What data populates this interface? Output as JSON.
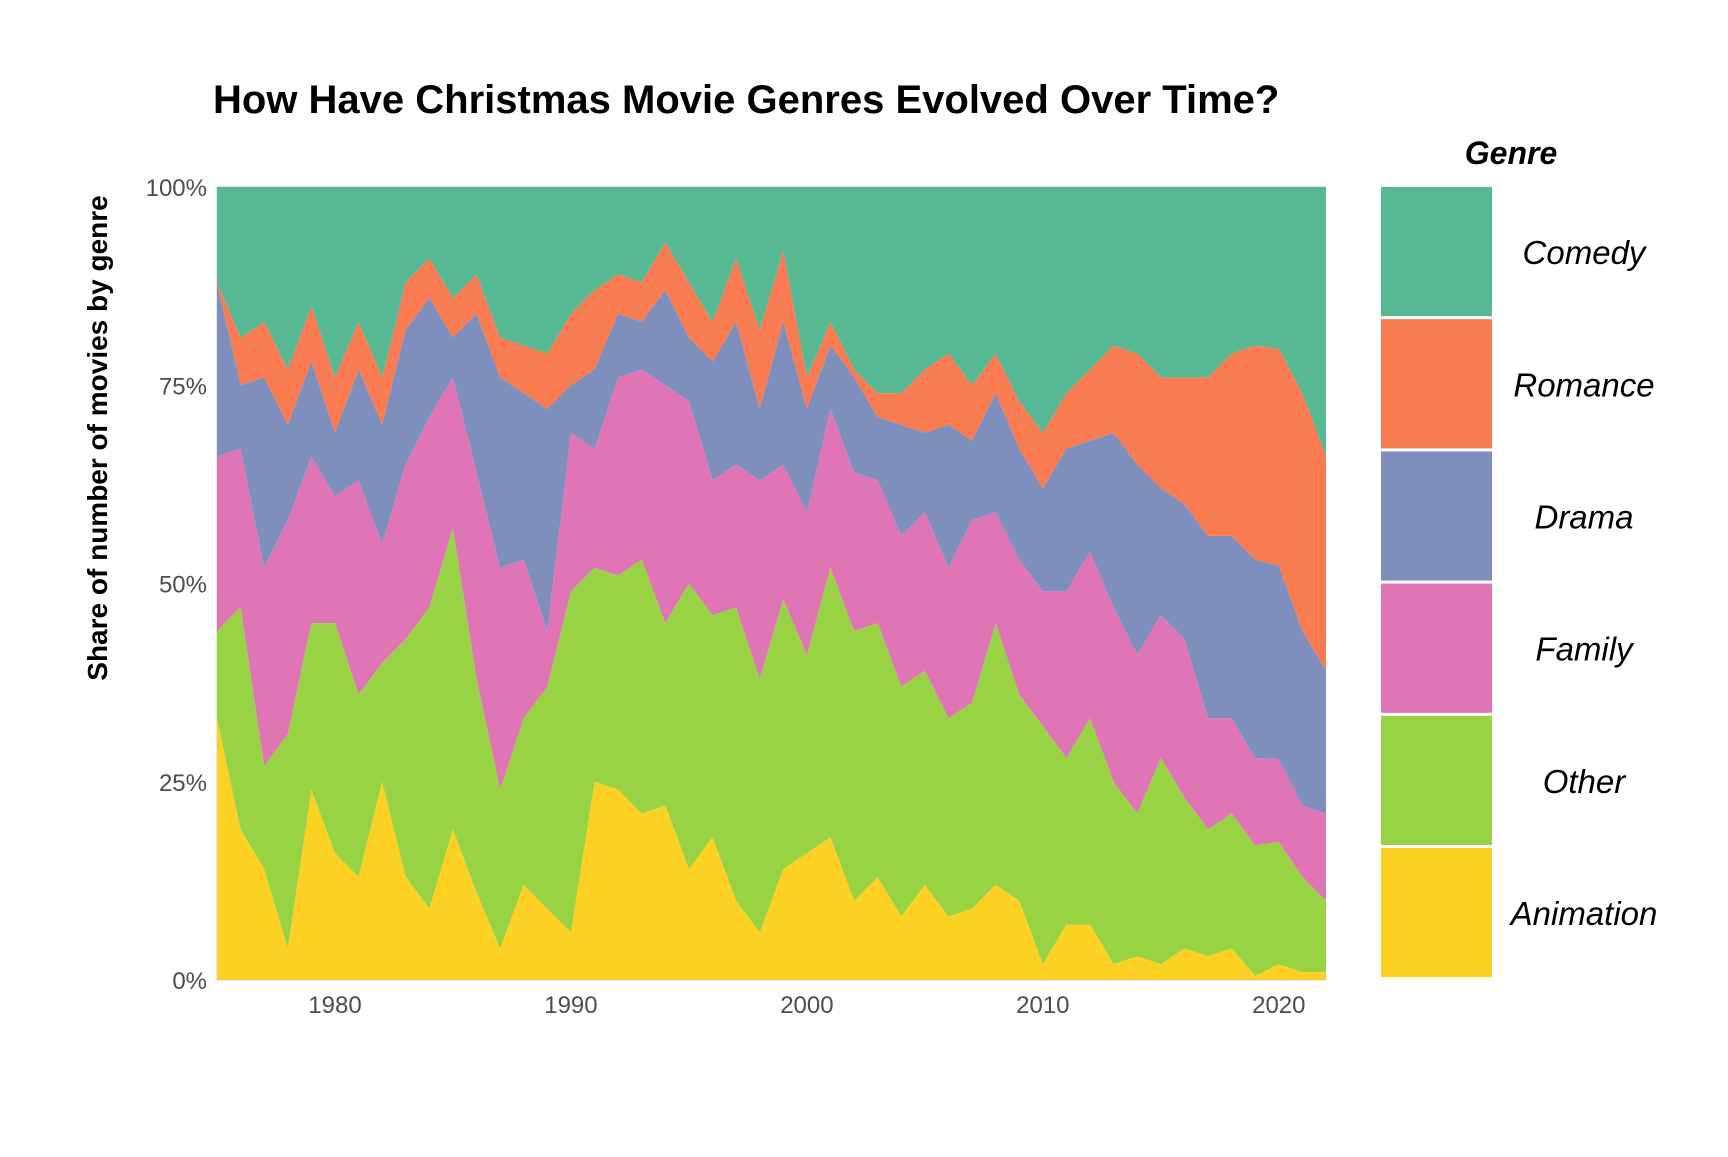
{
  "chart_data": {
    "type": "area",
    "stacked": true,
    "normalized": true,
    "title": "How Have Christmas Movie Genres Evolved Over Time?",
    "xlabel": "",
    "ylabel": "Share of number of movies by genre",
    "xlim": [
      1975,
      2022
    ],
    "ylim": [
      0,
      1
    ],
    "x_ticks": [
      1980,
      1990,
      2000,
      2010,
      2020
    ],
    "y_ticks": [
      "0%",
      "25%",
      "50%",
      "75%",
      "100%"
    ],
    "grid": true,
    "legend": {
      "title": "Genre",
      "position": "right"
    },
    "x": [
      1975,
      1976,
      1977,
      1978,
      1979,
      1980,
      1981,
      1982,
      1983,
      1984,
      1985,
      1986,
      1987,
      1988,
      1989,
      1990,
      1991,
      1992,
      1993,
      1994,
      1995,
      1996,
      1997,
      1998,
      1999,
      2000,
      2001,
      2002,
      2003,
      2004,
      2005,
      2006,
      2007,
      2008,
      2009,
      2010,
      2011,
      2012,
      2013,
      2014,
      2015,
      2016,
      2017,
      2018,
      2019,
      2020,
      2021,
      2022
    ],
    "series": [
      {
        "name": "Animation",
        "color": "#fcd124",
        "values": [
          0.33,
          0.19,
          0.14,
          0.04,
          0.24,
          0.16,
          0.13,
          0.25,
          0.13,
          0.09,
          0.19,
          0.11,
          0.04,
          0.12,
          0.09,
          0.06,
          0.25,
          0.24,
          0.21,
          0.22,
          0.14,
          0.18,
          0.1,
          0.06,
          0.14,
          0.16,
          0.18,
          0.1,
          0.13,
          0.08,
          0.12,
          0.08,
          0.09,
          0.12,
          0.1,
          0.02,
          0.07,
          0.07,
          0.02,
          0.03,
          0.02,
          0.04,
          0.03,
          0.04,
          0.005,
          0.02,
          0.01,
          0.01
        ]
      },
      {
        "name": "Other",
        "color": "#98d343",
        "values": [
          0.11,
          0.28,
          0.13,
          0.27,
          0.21,
          0.29,
          0.23,
          0.15,
          0.3,
          0.38,
          0.38,
          0.27,
          0.2,
          0.21,
          0.28,
          0.43,
          0.27,
          0.27,
          0.32,
          0.23,
          0.36,
          0.28,
          0.37,
          0.32,
          0.34,
          0.25,
          0.34,
          0.34,
          0.32,
          0.29,
          0.27,
          0.25,
          0.26,
          0.33,
          0.26,
          0.3,
          0.21,
          0.26,
          0.23,
          0.18,
          0.26,
          0.19,
          0.16,
          0.17,
          0.165,
          0.155,
          0.12,
          0.09
        ]
      },
      {
        "name": "Family",
        "color": "#e075b5",
        "values": [
          0.22,
          0.2,
          0.25,
          0.27,
          0.21,
          0.16,
          0.27,
          0.15,
          0.22,
          0.24,
          0.19,
          0.26,
          0.28,
          0.2,
          0.07,
          0.2,
          0.15,
          0.25,
          0.24,
          0.3,
          0.23,
          0.17,
          0.18,
          0.25,
          0.17,
          0.18,
          0.2,
          0.2,
          0.18,
          0.19,
          0.2,
          0.19,
          0.23,
          0.14,
          0.17,
          0.17,
          0.21,
          0.21,
          0.22,
          0.2,
          0.18,
          0.2,
          0.14,
          0.12,
          0.11,
          0.105,
          0.09,
          0.11
        ]
      },
      {
        "name": "Drama",
        "color": "#7e8ebd",
        "values": [
          0.22,
          0.08,
          0.24,
          0.12,
          0.12,
          0.08,
          0.14,
          0.15,
          0.17,
          0.15,
          0.05,
          0.2,
          0.24,
          0.21,
          0.28,
          0.06,
          0.1,
          0.08,
          0.06,
          0.12,
          0.08,
          0.15,
          0.18,
          0.09,
          0.18,
          0.13,
          0.08,
          0.12,
          0.08,
          0.14,
          0.1,
          0.18,
          0.1,
          0.15,
          0.14,
          0.13,
          0.18,
          0.14,
          0.22,
          0.24,
          0.16,
          0.17,
          0.23,
          0.23,
          0.25,
          0.245,
          0.22,
          0.18
        ]
      },
      {
        "name": "Romance",
        "color": "#f87b51",
        "values": [
          0.0,
          0.06,
          0.07,
          0.07,
          0.07,
          0.07,
          0.06,
          0.06,
          0.06,
          0.05,
          0.05,
          0.05,
          0.05,
          0.06,
          0.07,
          0.09,
          0.1,
          0.05,
          0.05,
          0.06,
          0.07,
          0.05,
          0.08,
          0.1,
          0.09,
          0.04,
          0.03,
          0.01,
          0.03,
          0.04,
          0.08,
          0.09,
          0.07,
          0.05,
          0.06,
          0.07,
          0.07,
          0.09,
          0.11,
          0.14,
          0.14,
          0.16,
          0.2,
          0.23,
          0.27,
          0.275,
          0.3,
          0.27
        ]
      },
      {
        "name": "Comedy",
        "color": "#57b993",
        "values": [
          0.12,
          0.19,
          0.17,
          0.23,
          0.15,
          0.24,
          0.17,
          0.24,
          0.12,
          0.09,
          0.14,
          0.11,
          0.19,
          0.2,
          0.21,
          0.16,
          0.13,
          0.11,
          0.12,
          0.07,
          0.12,
          0.17,
          0.09,
          0.18,
          0.08,
          0.24,
          0.17,
          0.23,
          0.26,
          0.26,
          0.23,
          0.21,
          0.25,
          0.21,
          0.27,
          0.31,
          0.26,
          0.23,
          0.2,
          0.21,
          0.24,
          0.24,
          0.24,
          0.21,
          0.2,
          0.205,
          0.26,
          0.34
        ]
      }
    ]
  }
}
